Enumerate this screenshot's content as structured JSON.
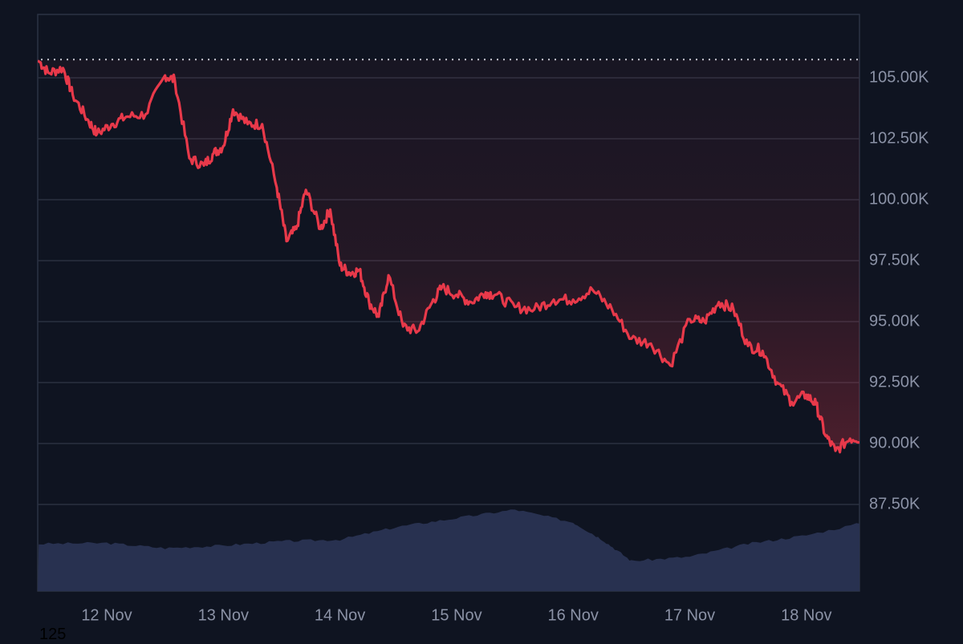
{
  "chart_data": {
    "type": "line",
    "title": "",
    "xlabel": "",
    "ylabel": "",
    "x_tick_labels": [
      "12 Nov",
      "13 Nov",
      "14 Nov",
      "15 Nov",
      "16 Nov",
      "17 Nov",
      "18 Nov"
    ],
    "y_tick_labels": [
      "105.00K",
      "102.50K",
      "100.00K",
      "97.50K",
      "95.00K",
      "92.50K",
      "90.00K",
      "87.50K"
    ],
    "y_ticks": [
      105000,
      102500,
      100000,
      97500,
      95000,
      92500,
      90000,
      87500
    ],
    "ylim": [
      85000,
      107600
    ],
    "grid": true,
    "reference_line": {
      "value": 105750,
      "style": "dotted",
      "color": "#c8ccd6"
    },
    "colors": {
      "line": "#e8394a",
      "volume": "#283150",
      "grid": "#2a3040",
      "background": "#0f1421",
      "axis_text": "#8b92a6"
    },
    "series": [
      {
        "name": "Price",
        "x": [
          "11 Nov 10:00",
          "11 Nov 12:00",
          "11 Nov 15:00",
          "11 Nov 17:00",
          "11 Nov 20:00",
          "11 Nov 22:00",
          "12 Nov 01:00",
          "12 Nov 04:00",
          "12 Nov 08:00",
          "12 Nov 12:00",
          "12 Nov 14:00",
          "12 Nov 17:00",
          "12 Nov 20:00",
          "12 Nov 22:00",
          "13 Nov 00:00",
          "13 Nov 02:00",
          "13 Nov 05:00",
          "13 Nov 08:00",
          "13 Nov 11:00",
          "13 Nov 13:00",
          "13 Nov 15:00",
          "13 Nov 17:00",
          "13 Nov 20:00",
          "13 Nov 22:00",
          "14 Nov 00:00",
          "14 Nov 02:00",
          "14 Nov 04:00",
          "14 Nov 06:00",
          "14 Nov 08:00",
          "14 Nov 10:00",
          "14 Nov 13:00",
          "14 Nov 16:00",
          "14 Nov 19:00",
          "14 Nov 21:00",
          "15 Nov 00:00",
          "15 Nov 03:00",
          "15 Nov 06:00",
          "15 Nov 08:00",
          "15 Nov 12:00",
          "15 Nov 16:00",
          "15 Nov 20:00",
          "16 Nov 00:00",
          "16 Nov 04:00",
          "16 Nov 08:00",
          "16 Nov 12:00",
          "16 Nov 16:00",
          "16 Nov 20:00",
          "17 Nov 00:00",
          "17 Nov 03:00",
          "17 Nov 06:00",
          "17 Nov 09:00",
          "17 Nov 12:00",
          "17 Nov 15:00",
          "17 Nov 18:00",
          "17 Nov 21:00",
          "18 Nov 00:00",
          "18 Nov 02:00",
          "18 Nov 04:00",
          "18 Nov 06:00",
          "18 Nov 09:00",
          "18 Nov 12:00",
          "18 Nov 14:00",
          "18 Nov 16:00"
        ],
        "values": [
          105700,
          105200,
          105400,
          104300,
          103300,
          102700,
          103100,
          103400,
          103500,
          105100,
          104900,
          101700,
          101400,
          101900,
          102200,
          103700,
          103100,
          103100,
          100500,
          98300,
          98800,
          100400,
          98800,
          99600,
          97300,
          97000,
          97100,
          95800,
          95200,
          96900,
          94800,
          94600,
          95800,
          96400,
          96100,
          95800,
          96200,
          96100,
          95600,
          95500,
          95900,
          95900,
          96300,
          95500,
          94300,
          94100,
          93200,
          95100,
          95000,
          95800,
          95500,
          94000,
          93800,
          92500,
          91700,
          92000,
          91600,
          90300,
          89700,
          90200,
          90200,
          90200,
          90200
        ],
        "color": "#e8394a"
      },
      {
        "name": "Volume",
        "type": "area",
        "x": [
          "11 Nov 10:00",
          "12 Nov 00:00",
          "12 Nov 12:00",
          "13 Nov 00:00",
          "13 Nov 12:00",
          "14 Nov 00:00",
          "14 Nov 12:00",
          "15 Nov 00:00",
          "15 Nov 12:00",
          "16 Nov 00:00",
          "16 Nov 06:00",
          "16 Nov 12:00",
          "17 Nov 00:00",
          "17 Nov 12:00",
          "18 Nov 00:00",
          "18 Nov 16:00"
        ],
        "relative_height": [
          0.55,
          0.56,
          0.5,
          0.53,
          0.58,
          0.6,
          0.75,
          0.85,
          0.95,
          0.8,
          0.6,
          0.35,
          0.4,
          0.55,
          0.65,
          0.85
        ],
        "color": "#283150"
      }
    ]
  },
  "axis": {
    "y": [
      "105.00K",
      "102.50K",
      "100.00K",
      "97.50K",
      "95.00K",
      "92.50K",
      "90.00K",
      "87.50K"
    ],
    "x": [
      "12 Nov",
      "13 Nov",
      "14 Nov",
      "15 Nov",
      "16 Nov",
      "17 Nov",
      "18 Nov"
    ]
  },
  "stray_label": "125"
}
